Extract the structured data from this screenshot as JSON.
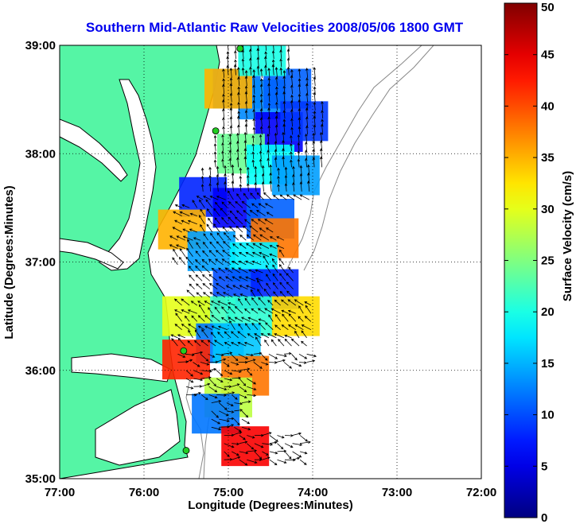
{
  "chart_data": {
    "type": "heatmap",
    "title": "Southern Mid-Atlantic Raw Velocities 2008/05/06 1800 GMT",
    "xlabel": "Longitude (Degrees:Minutes)",
    "ylabel": "Latitude (Degrees:Minutes)",
    "xlim": [
      -77.0,
      -72.0
    ],
    "ylim": [
      35.0,
      39.0
    ],
    "x_ticks": [
      {
        "value": -77,
        "label": "77:00"
      },
      {
        "value": -76,
        "label": "76:00"
      },
      {
        "value": -75,
        "label": "75:00"
      },
      {
        "value": -74,
        "label": "74:00"
      },
      {
        "value": -73,
        "label": "73:00"
      },
      {
        "value": -72,
        "label": "72:00"
      }
    ],
    "y_ticks": [
      {
        "value": 35,
        "label": "35:00"
      },
      {
        "value": 36,
        "label": "36:00"
      },
      {
        "value": 37,
        "label": "37:00"
      },
      {
        "value": 38,
        "label": "38:00"
      },
      {
        "value": 39,
        "label": "39:00"
      }
    ],
    "grid": true,
    "colorbar": {
      "label": "Surface Velocity (cm/s)",
      "range": [
        0,
        50
      ],
      "ticks": [
        0,
        5,
        10,
        15,
        20,
        25,
        30,
        35,
        40,
        45,
        50
      ],
      "tick_labels": [
        "0",
        "5",
        "10",
        "15",
        "20",
        "25",
        "30",
        "35",
        "40",
        "45",
        "50"
      ],
      "colormap": "jet"
    },
    "velocity_patches": [
      {
        "lon": -74.9,
        "lat": 38.6,
        "speed": 12
      },
      {
        "lon": -74.6,
        "lat": 38.5,
        "speed": 13
      },
      {
        "lon": -74.3,
        "lat": 38.6,
        "speed": 11
      },
      {
        "lon": -75.0,
        "lat": 38.6,
        "speed": 35
      },
      {
        "lon": -74.6,
        "lat": 38.9,
        "speed": 20
      },
      {
        "lon": -74.4,
        "lat": 38.2,
        "speed": 6
      },
      {
        "lon": -74.1,
        "lat": 38.3,
        "speed": 9
      },
      {
        "lon": -74.85,
        "lat": 38.0,
        "speed": 24
      },
      {
        "lon": -74.5,
        "lat": 37.9,
        "speed": 19
      },
      {
        "lon": -74.2,
        "lat": 37.8,
        "speed": 14
      },
      {
        "lon": -75.3,
        "lat": 37.6,
        "speed": 8
      },
      {
        "lon": -74.9,
        "lat": 37.5,
        "speed": 6
      },
      {
        "lon": -74.5,
        "lat": 37.4,
        "speed": 11
      },
      {
        "lon": -75.55,
        "lat": 37.3,
        "speed": 35
      },
      {
        "lon": -75.2,
        "lat": 37.1,
        "speed": 14
      },
      {
        "lon": -74.45,
        "lat": 37.22,
        "speed": 38
      },
      {
        "lon": -74.7,
        "lat": 37.0,
        "speed": 18
      },
      {
        "lon": -74.9,
        "lat": 36.75,
        "speed": 10
      },
      {
        "lon": -74.45,
        "lat": 36.75,
        "speed": 8
      },
      {
        "lon": -75.2,
        "lat": 36.5,
        "speed": 22
      },
      {
        "lon": -74.75,
        "lat": 36.5,
        "speed": 21
      },
      {
        "lon": -74.2,
        "lat": 36.5,
        "speed": 33
      },
      {
        "lon": -75.5,
        "lat": 36.5,
        "speed": 30
      },
      {
        "lon": -75.1,
        "lat": 36.25,
        "speed": 12
      },
      {
        "lon": -74.9,
        "lat": 36.25,
        "speed": 16
      },
      {
        "lon": -75.5,
        "lat": 36.1,
        "speed": 42
      },
      {
        "lon": -74.8,
        "lat": 35.95,
        "speed": 38
      },
      {
        "lon": -75.0,
        "lat": 35.75,
        "speed": 28
      },
      {
        "lon": -75.15,
        "lat": 35.6,
        "speed": 12
      },
      {
        "lon": -74.8,
        "lat": 35.3,
        "speed": 44
      }
    ],
    "shore_stations": [
      {
        "lon": -74.86,
        "lat": 38.97
      },
      {
        "lon": -75.15,
        "lat": 38.21
      },
      {
        "lon": -75.53,
        "lat": 36.18
      },
      {
        "lon": -75.5,
        "lat": 35.26
      }
    ],
    "colors": {
      "land": "#55f5a5",
      "title": "#0000ee",
      "station": "#22cc22"
    }
  }
}
